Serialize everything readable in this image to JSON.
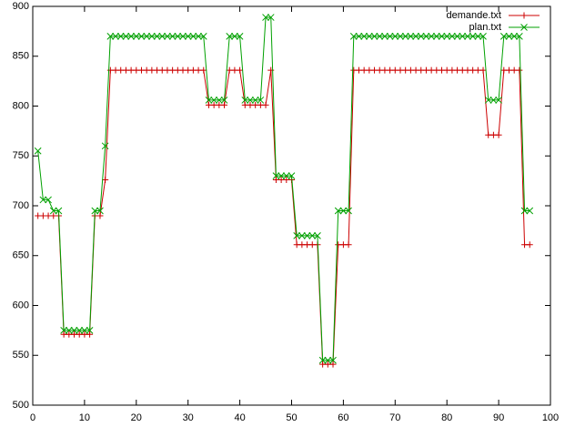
{
  "chart_data": {
    "type": "line",
    "x": [
      1,
      2,
      3,
      4,
      5,
      6,
      7,
      8,
      9,
      10,
      11,
      12,
      13,
      14,
      15,
      16,
      17,
      18,
      19,
      20,
      21,
      22,
      23,
      24,
      25,
      26,
      27,
      28,
      29,
      30,
      31,
      32,
      33,
      34,
      35,
      36,
      37,
      38,
      39,
      40,
      41,
      42,
      43,
      44,
      45,
      46,
      47,
      48,
      49,
      50,
      51,
      52,
      53,
      54,
      55,
      56,
      57,
      58,
      59,
      60,
      61,
      62,
      63,
      64,
      65,
      66,
      67,
      68,
      69,
      70,
      71,
      72,
      73,
      74,
      75,
      76,
      77,
      78,
      79,
      80,
      81,
      82,
      83,
      84,
      85,
      86,
      87,
      88,
      89,
      90,
      91,
      92,
      93,
      94,
      95,
      96
    ],
    "series": [
      {
        "name": "demande.txt",
        "color": "#cc0000",
        "marker": "plus",
        "values": [
          690,
          690,
          690,
          690,
          690,
          571,
          571,
          571,
          571,
          571,
          571,
          690,
          690,
          726,
          836,
          836,
          836,
          836,
          836,
          836,
          836,
          836,
          836,
          836,
          836,
          836,
          836,
          836,
          836,
          836,
          836,
          836,
          836,
          801,
          801,
          801,
          801,
          836,
          836,
          836,
          801,
          801,
          801,
          801,
          801,
          836,
          726,
          726,
          726,
          726,
          661,
          661,
          661,
          661,
          661,
          541,
          541,
          541,
          661,
          661,
          661,
          836,
          836,
          836,
          836,
          836,
          836,
          836,
          836,
          836,
          836,
          836,
          836,
          836,
          836,
          836,
          836,
          836,
          836,
          836,
          836,
          836,
          836,
          836,
          836,
          836,
          836,
          771,
          771,
          771,
          836,
          836,
          836,
          836,
          661,
          661
        ]
      },
      {
        "name": "plan.txt",
        "color": "#00a000",
        "marker": "cross",
        "values": [
          755,
          706,
          706,
          695,
          695,
          575,
          575,
          575,
          575,
          575,
          575,
          695,
          695,
          760,
          870,
          870,
          870,
          870,
          870,
          870,
          870,
          870,
          870,
          870,
          870,
          870,
          870,
          870,
          870,
          870,
          870,
          870,
          870,
          806,
          806,
          806,
          806,
          870,
          870,
          870,
          806,
          806,
          806,
          806,
          889,
          889,
          730,
          730,
          730,
          730,
          670,
          670,
          670,
          670,
          670,
          545,
          545,
          545,
          695,
          695,
          695,
          870,
          870,
          870,
          870,
          870,
          870,
          870,
          870,
          870,
          870,
          870,
          870,
          870,
          870,
          870,
          870,
          870,
          870,
          870,
          870,
          870,
          870,
          870,
          870,
          870,
          870,
          806,
          806,
          806,
          870,
          870,
          870,
          870,
          695,
          695
        ]
      }
    ],
    "xlim": [
      0,
      100
    ],
    "xticks": [
      0,
      10,
      20,
      30,
      40,
      50,
      60,
      70,
      80,
      90,
      100
    ],
    "ylim": [
      500,
      900
    ],
    "yticks": [
      500,
      550,
      600,
      650,
      700,
      750,
      800,
      850,
      900
    ],
    "legend": "top-right"
  }
}
